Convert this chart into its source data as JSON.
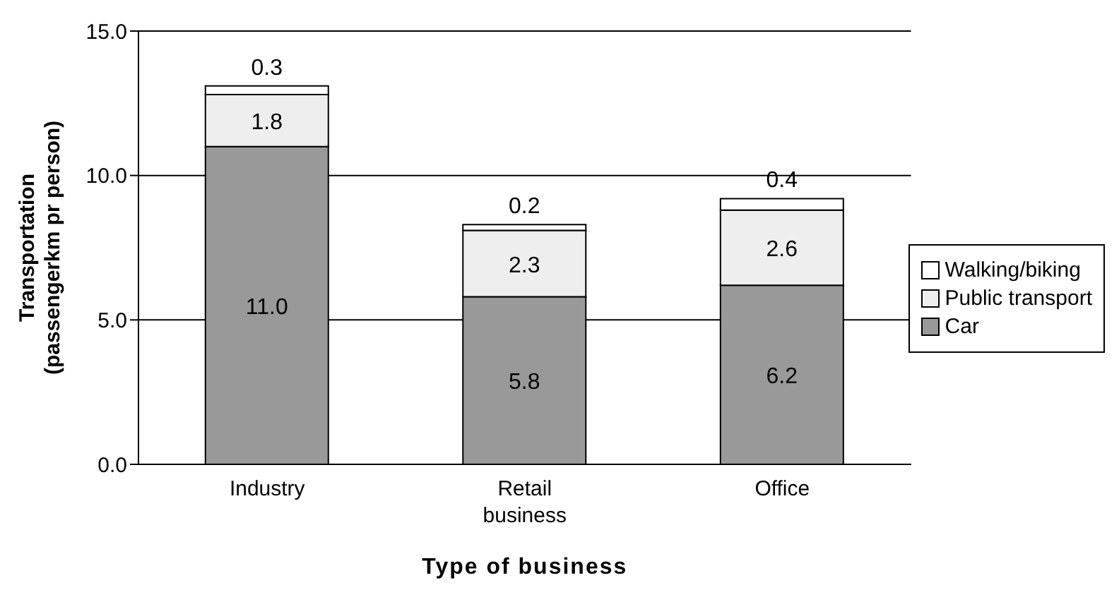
{
  "chart_data": {
    "type": "bar",
    "stacked": true,
    "xlabel": "Type of business",
    "ylabel": "Transportation\n(passengerkm pr person)",
    "categories": [
      "Industry",
      "Retail business",
      "Office"
    ],
    "series": [
      {
        "name": "Car",
        "color": "#999999",
        "values": [
          11.0,
          5.8,
          6.2
        ],
        "value_labels": [
          "11.0",
          "5.8",
          "6.2"
        ]
      },
      {
        "name": "Public transport",
        "color": "#eeeeee",
        "values": [
          1.8,
          2.3,
          2.6
        ],
        "value_labels": [
          "1.8",
          "2.3",
          "2.6"
        ]
      },
      {
        "name": "Walking/biking",
        "color": "#ffffff",
        "values": [
          0.3,
          0.2,
          0.4
        ],
        "value_labels": [
          "0.3",
          "0.2",
          "0.4"
        ]
      }
    ],
    "ylim": [
      0,
      15
    ],
    "yticks": [
      {
        "value": 0,
        "label": "0.0"
      },
      {
        "value": 5,
        "label": "5.0"
      },
      {
        "value": 10,
        "label": "10.0"
      },
      {
        "value": 15,
        "label": "15.0"
      }
    ],
    "grid": "y",
    "legend": "right"
  }
}
